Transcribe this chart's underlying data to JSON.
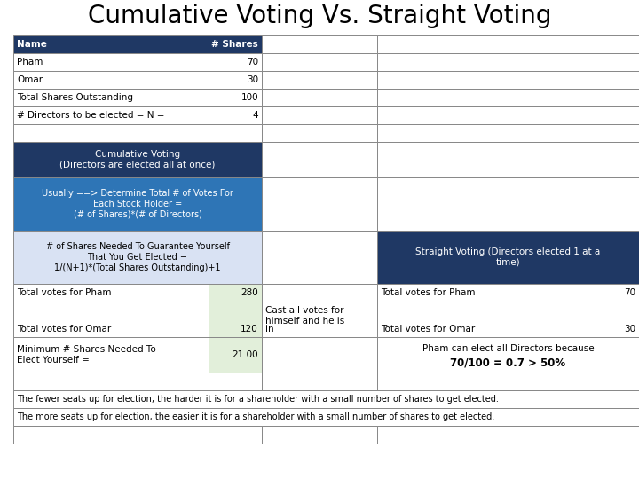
{
  "title": "Cumulative Voting Vs. Straight Voting",
  "title_fontsize": 20,
  "bg_color": "#ffffff",
  "dark_blue": "#1F3864",
  "medium_blue": "#2E75B6",
  "light_blue": "#D9E2F3",
  "light_green": "#E2EFDA",
  "table1_rows": [
    [
      "Name",
      "# Shares"
    ],
    [
      "Pham",
      "70"
    ],
    [
      "Omar",
      "30"
    ],
    [
      "Total Shares Outstanding –",
      "100"
    ],
    [
      "# Directors to be elected = N =",
      "4"
    ]
  ],
  "bottom_text1": "The fewer seats up for election, the harder it is for a shareholder with a small number of shares to get elected.",
  "bottom_text2": "The more seats up for election, the easier it is for a shareholder with a small number of shares to get elected."
}
